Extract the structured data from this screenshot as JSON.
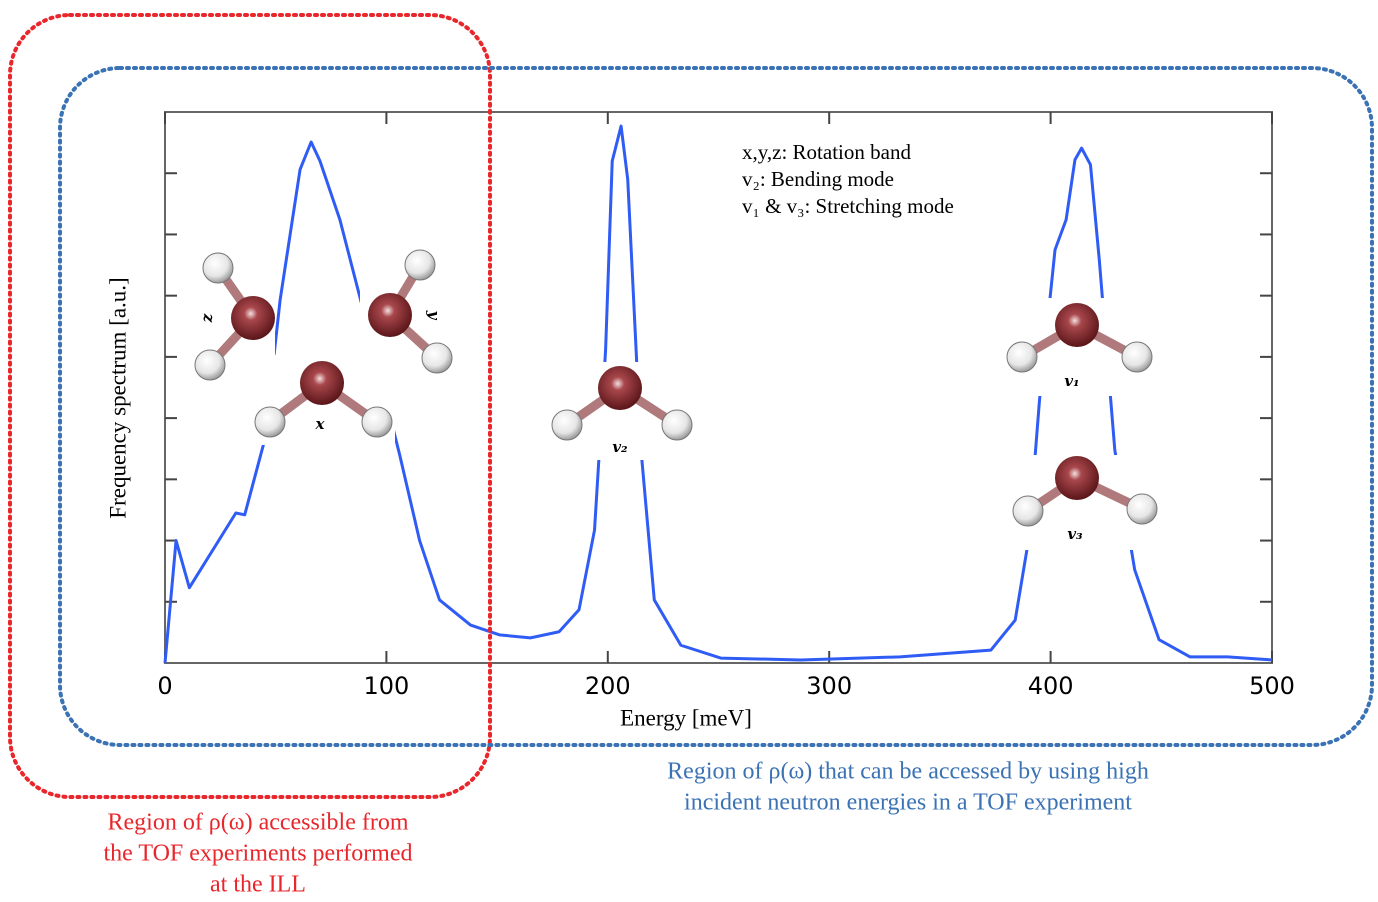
{
  "chart_data": {
    "type": "line",
    "x_label": "Energy [meV]",
    "y_label": "Frequency spectrum [a.u.]",
    "x": [
      0,
      5,
      11,
      32,
      36,
      45,
      52,
      61,
      66,
      70,
      79,
      93,
      106,
      115,
      124,
      138,
      151,
      165,
      178,
      187,
      194,
      199,
      202,
      206,
      209,
      215,
      221,
      233,
      251,
      287,
      332,
      373,
      384,
      390,
      395,
      402,
      407,
      411,
      414,
      418,
      422,
      429,
      438,
      449,
      463,
      480,
      500
    ],
    "values": [
      0,
      2.0,
      1.23,
      2.45,
      2.42,
      3.64,
      5.93,
      8.06,
      8.51,
      8.2,
      7.24,
      5.28,
      3.4,
      2.0,
      1.03,
      0.62,
      0.46,
      0.41,
      0.51,
      0.87,
      2.17,
      5.11,
      8.2,
      8.77,
      7.9,
      3.48,
      1.03,
      0.29,
      0.08,
      0.05,
      0.1,
      0.21,
      0.7,
      2.0,
      4.3,
      6.75,
      7.24,
      8.22,
      8.41,
      8.14,
      6.58,
      3.48,
      1.52,
      0.38,
      0.1,
      0.1,
      0.05
    ],
    "color": "#2f5cf5",
    "xlim": [
      0,
      500
    ],
    "xticks": [
      0,
      100,
      200,
      300,
      400,
      500
    ],
    "ylim": [
      0,
      9
    ],
    "yticks": [
      1,
      2,
      3,
      4,
      5,
      6,
      7,
      8
    ],
    "annotations": [
      "x,y,z: Rotation band",
      "v₂: Bending mode",
      "v₁ & v₃: Stretching mode"
    ],
    "molecule_labels": [
      "z",
      "y",
      "x",
      "v₂",
      "v₁",
      "v₃"
    ]
  },
  "regions": [
    {
      "color": "#e8262b",
      "label_lines": [
        "Region of ρ(ω) accessible from",
        "the TOF experiments performed",
        "at the ILL"
      ]
    },
    {
      "color": "#3a72b4",
      "label_lines": [
        "Region of ρ(ω) that can be accessed by using high",
        "incident neutron energies in a TOF experiment"
      ]
    }
  ]
}
